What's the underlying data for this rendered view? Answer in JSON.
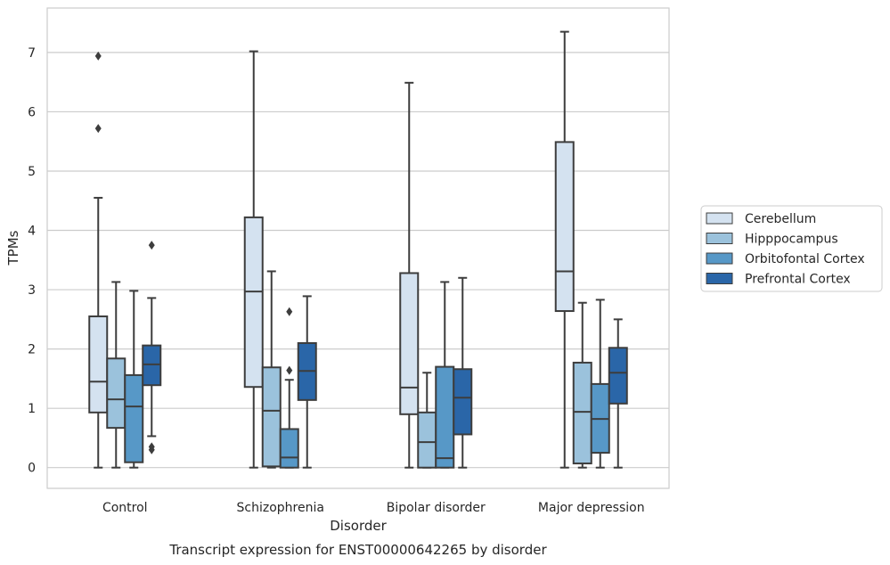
{
  "chart_data": {
    "type": "box",
    "caption": "Transcript expression for ENST00000642265 by disorder",
    "xlabel": "Disorder",
    "ylabel": "TPMs",
    "ylim": [
      -0.35,
      7.75
    ],
    "yticks": [
      0,
      1,
      2,
      3,
      4,
      5,
      6,
      7
    ],
    "grid": "horizontal",
    "legend_position": "right",
    "categories": [
      "Control",
      "Schizophrenia",
      "Bipolar disorder",
      "Major depression"
    ],
    "series": [
      {
        "name": "Cerebellum",
        "color": "#d4e2f0",
        "boxes": [
          {
            "whislo": 0,
            "q1": 0.93,
            "med": 1.45,
            "q3": 2.55,
            "whishi": 4.55,
            "fliers": [
              5.72,
              6.94
            ]
          },
          {
            "whislo": 0,
            "q1": 1.36,
            "med": 2.97,
            "q3": 4.22,
            "whishi": 7.02,
            "fliers": []
          },
          {
            "whislo": 0,
            "q1": 0.9,
            "med": 1.35,
            "q3": 3.28,
            "whishi": 6.49,
            "fliers": []
          },
          {
            "whislo": 0,
            "q1": 2.64,
            "med": 3.31,
            "q3": 5.49,
            "whishi": 7.35,
            "fliers": []
          }
        ]
      },
      {
        "name": "Hipppocampus",
        "color": "#9bc2dc",
        "boxes": [
          {
            "whislo": 0,
            "q1": 0.67,
            "med": 1.15,
            "q3": 1.84,
            "whishi": 3.13,
            "fliers": []
          },
          {
            "whislo": 0,
            "q1": 0.02,
            "med": 0.96,
            "q3": 1.69,
            "whishi": 3.31,
            "fliers": []
          },
          {
            "whislo": 0,
            "q1": 0,
            "med": 0.43,
            "q3": 0.93,
            "whishi": 1.6,
            "fliers": []
          },
          {
            "whislo": 0,
            "q1": 0.07,
            "med": 0.94,
            "q3": 1.77,
            "whishi": 2.78,
            "fliers": []
          }
        ]
      },
      {
        "name": "Orbitofontal Cortex",
        "color": "#5798c7",
        "boxes": [
          {
            "whislo": 0,
            "q1": 0.09,
            "med": 1.03,
            "q3": 1.56,
            "whishi": 2.98,
            "fliers": []
          },
          {
            "whislo": 0,
            "q1": 0,
            "med": 0.17,
            "q3": 0.65,
            "whishi": 1.48,
            "fliers": [
              1.64,
              2.63
            ]
          },
          {
            "whislo": 0,
            "q1": 0,
            "med": 0.16,
            "q3": 1.7,
            "whishi": 3.13,
            "fliers": []
          },
          {
            "whislo": 0,
            "q1": 0.25,
            "med": 0.82,
            "q3": 1.41,
            "whishi": 2.83,
            "fliers": []
          }
        ]
      },
      {
        "name": "Prefrontal Cortex",
        "color": "#2a66a8",
        "boxes": [
          {
            "whislo": 0.53,
            "q1": 1.39,
            "med": 1.74,
            "q3": 2.06,
            "whishi": 2.86,
            "fliers": [
              0.3,
              0.35,
              3.75
            ]
          },
          {
            "whislo": 0,
            "q1": 1.14,
            "med": 1.63,
            "q3": 2.1,
            "whishi": 2.89,
            "fliers": []
          },
          {
            "whislo": 0,
            "q1": 0.56,
            "med": 1.18,
            "q3": 1.66,
            "whishi": 3.2,
            "fliers": []
          },
          {
            "whislo": 0,
            "q1": 1.08,
            "med": 1.6,
            "q3": 2.02,
            "whishi": 2.5,
            "fliers": []
          }
        ]
      }
    ]
  },
  "style": {
    "edge_color": "#3d3d3d",
    "grid_color": "#cccccc",
    "frame_color": "#cccccc"
  }
}
